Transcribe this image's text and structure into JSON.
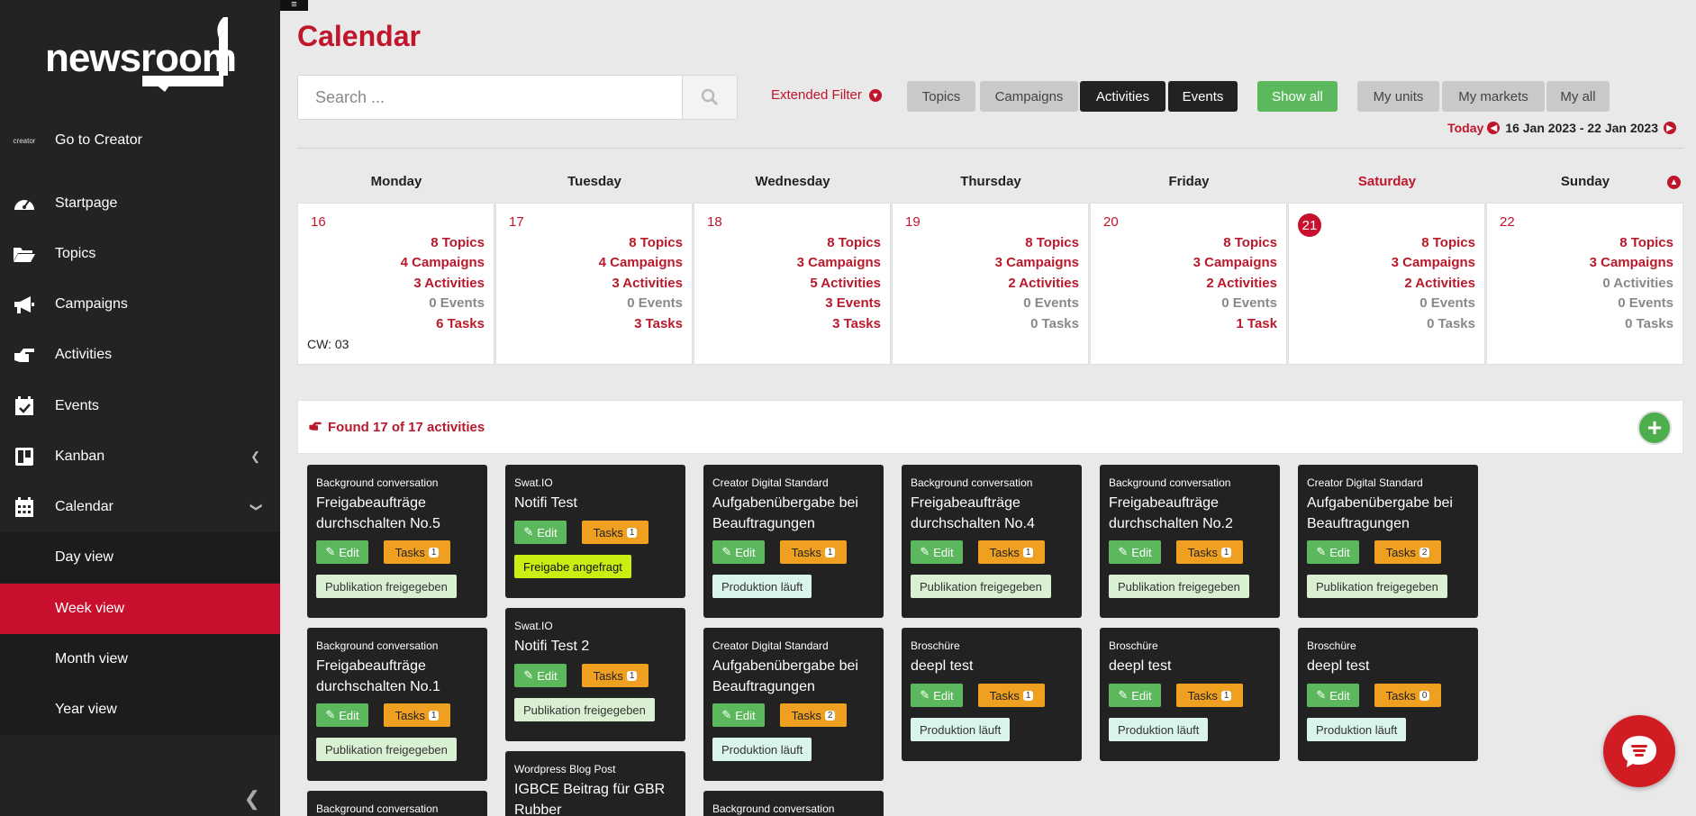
{
  "app": {
    "title": "Calendar",
    "logo_text": "newsroom"
  },
  "sidebar": {
    "creator_logo": "creator",
    "items": [
      {
        "label": "Go to Creator",
        "icon": "creator-logo-icon"
      },
      {
        "label": "Startpage",
        "icon": "dashboard-icon"
      },
      {
        "label": "Topics",
        "icon": "folder-icon"
      },
      {
        "label": "Campaigns",
        "icon": "megaphone-icon"
      },
      {
        "label": "Activities",
        "icon": "hand-point-icon"
      },
      {
        "label": "Events",
        "icon": "calendar-check-icon"
      },
      {
        "label": "Kanban",
        "icon": "kanban-icon"
      },
      {
        "label": "Calendar",
        "icon": "calendar-icon"
      }
    ],
    "calendar_sub": [
      {
        "label": "Day view"
      },
      {
        "label": "Week view",
        "active": true
      },
      {
        "label": "Month view"
      },
      {
        "label": "Year view"
      }
    ]
  },
  "search": {
    "placeholder": "Search ..."
  },
  "filters": {
    "extended": "Extended Filter",
    "buttons": [
      "Topics",
      "Campaigns",
      "Activities",
      "Events",
      "Show all",
      "My units",
      "My markets",
      "My all"
    ]
  },
  "date_nav": {
    "today": "Today",
    "range": "16 Jan 2023 - 22 Jan 2023"
  },
  "week": {
    "days": [
      {
        "name": "Monday",
        "num": "16",
        "topics": "8 Topics",
        "campaigns": "4 Campaigns",
        "activities": "3 Activities",
        "events": "0 Events",
        "tasks": "6 Tasks",
        "cw": "CW: 03"
      },
      {
        "name": "Tuesday",
        "num": "17",
        "topics": "8 Topics",
        "campaigns": "4 Campaigns",
        "activities": "3 Activities",
        "events": "0 Events",
        "tasks": "3 Tasks"
      },
      {
        "name": "Wednesday",
        "num": "18",
        "topics": "8 Topics",
        "campaigns": "3 Campaigns",
        "activities": "5 Activities",
        "events": "3 Events",
        "tasks": "3 Tasks"
      },
      {
        "name": "Thursday",
        "num": "19",
        "topics": "8 Topics",
        "campaigns": "3 Campaigns",
        "activities": "2 Activities",
        "events": "0 Events",
        "tasks": "0 Tasks"
      },
      {
        "name": "Friday",
        "num": "20",
        "topics": "8 Topics",
        "campaigns": "3 Campaigns",
        "activities": "2 Activities",
        "events": "0 Events",
        "tasks": "1 Task"
      },
      {
        "name": "Saturday",
        "num": "21",
        "topics": "8 Topics",
        "campaigns": "3 Campaigns",
        "activities": "2 Activities",
        "events": "0 Events",
        "tasks": "0 Tasks"
      },
      {
        "name": "Sunday",
        "num": "22",
        "topics": "8 Topics",
        "campaigns": "3 Campaigns",
        "activities": "0 Activities",
        "events": "0 Events",
        "tasks": "0 Tasks"
      }
    ]
  },
  "found": {
    "text": "Found 17 of 17 activities"
  },
  "cards": [
    {
      "type": "Background conversation",
      "title": "Freigabeaufträge durchschalten No.5",
      "edit": "Edit",
      "tasks": "Tasks",
      "count": "1",
      "status": "Publikation freigegeben"
    },
    {
      "type": "Swat.IO",
      "title": "Notifi Test",
      "edit": "Edit",
      "tasks": "Tasks",
      "count": "1",
      "status": "Freigabe angefragt"
    },
    {
      "type": "Creator Digital Standard",
      "title": "Aufgabenübergabe bei Beauftragungen",
      "edit": "Edit",
      "tasks": "Tasks",
      "count": "1",
      "status": "Produktion läuft"
    },
    {
      "type": "Background conversation",
      "title": "Freigabeaufträge durchschalten No.4",
      "edit": "Edit",
      "tasks": "Tasks",
      "count": "1",
      "status": "Publikation freigegeben"
    },
    {
      "type": "Background conversation",
      "title": "Freigabeaufträge durchschalten No.2",
      "edit": "Edit",
      "tasks": "Tasks",
      "count": "1",
      "status": "Publikation freigegeben"
    },
    {
      "type": "Creator Digital Standard",
      "title": "Aufgabenübergabe bei Beauftragungen",
      "edit": "Edit",
      "tasks": "Tasks",
      "count": "2",
      "status": "Publikation freigegeben"
    },
    {
      "type": "Background conversation",
      "title": "Freigabeaufträge durchschalten No.1",
      "edit": "Edit",
      "tasks": "Tasks",
      "count": "1",
      "status": "Publikation freigegeben"
    },
    {
      "type": "Swat.IO",
      "title": "Notifi Test 2",
      "edit": "Edit",
      "tasks": "Tasks",
      "count": "1",
      "status": "Publikation freigegeben"
    },
    {
      "type": "Creator Digital Standard",
      "title": "Aufgabenübergabe bei Beauftragungen",
      "edit": "Edit",
      "tasks": "Tasks",
      "count": "2",
      "status": "Produktion läuft"
    },
    {
      "type": "Broschüre",
      "title": "deepl test",
      "edit": "Edit",
      "tasks": "Tasks",
      "count": "1",
      "status": "Produktion läuft"
    },
    {
      "type": "Broschüre",
      "title": "deepl test",
      "edit": "Edit",
      "tasks": "Tasks",
      "count": "1",
      "status": "Produktion läuft"
    },
    {
      "type": "Broschüre",
      "title": "deepl test",
      "edit": "Edit",
      "tasks": "Tasks",
      "count": "0",
      "status": "Produktion läuft"
    },
    {
      "type": "Background conversation",
      "title": ""
    },
    {
      "type": "Wordpress Blog Post",
      "title": "IGBCE Beitrag für GBR Rubber"
    },
    {
      "type": "Background conversation",
      "title": ""
    }
  ],
  "colors": {
    "brand_red": "#c0162b",
    "sidebar_bg": "#232323",
    "active_nav": "#c8102e",
    "edit_green": "#5cb85c",
    "tasks_orange": "#f0a020"
  }
}
